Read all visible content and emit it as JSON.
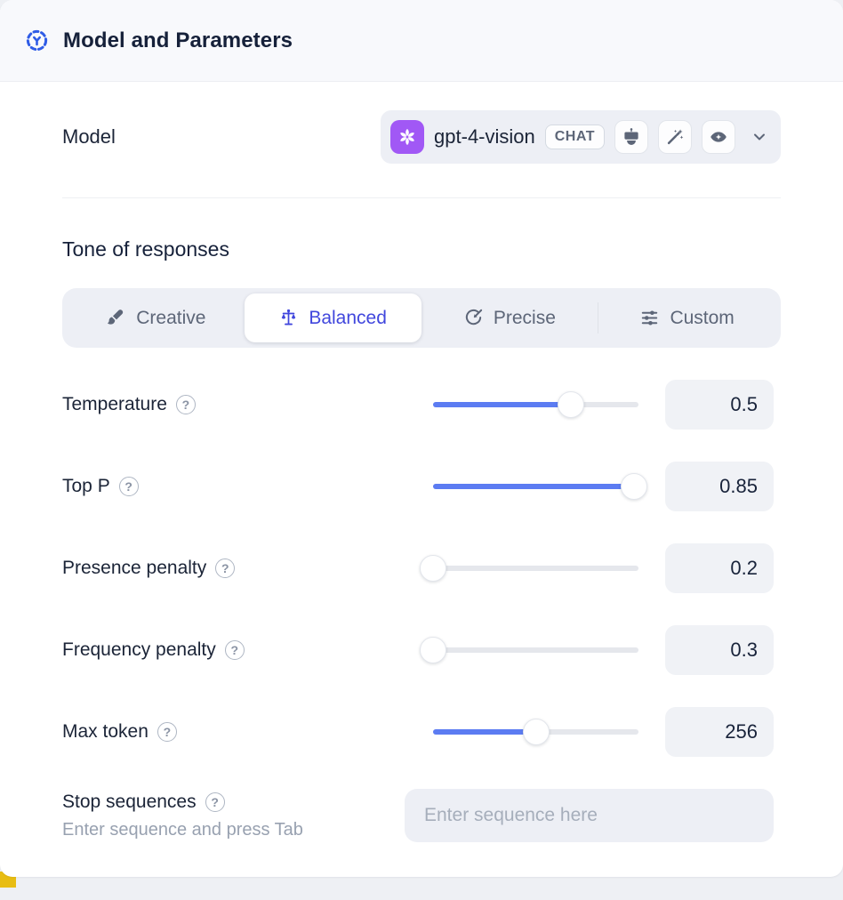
{
  "header": {
    "title": "Model and Parameters"
  },
  "model_row": {
    "label": "Model",
    "selected_model": "gpt-4-vision",
    "badge": "CHAT",
    "capabilities": [
      "robot",
      "magic-wand",
      "vision-eye"
    ]
  },
  "tone": {
    "heading": "Tone of responses",
    "options": [
      {
        "label": "Creative",
        "icon": "paintbrush-icon",
        "selected": false
      },
      {
        "label": "Balanced",
        "icon": "balance-scale-icon",
        "selected": true
      },
      {
        "label": "Precise",
        "icon": "target-icon",
        "selected": false
      },
      {
        "label": "Custom",
        "icon": "sliders-icon",
        "selected": false
      }
    ]
  },
  "sliders": [
    {
      "label": "Temperature",
      "value": "0.5",
      "fill_pct": 67
    },
    {
      "label": "Top P",
      "value": "0.85",
      "fill_pct": 98
    },
    {
      "label": "Presence penalty",
      "value": "0.2",
      "fill_pct": 0
    },
    {
      "label": "Frequency penalty",
      "value": "0.3",
      "fill_pct": 0
    },
    {
      "label": "Max token",
      "value": "256",
      "fill_pct": 50
    }
  ],
  "stop_sequences": {
    "label": "Stop sequences",
    "hint": "Enter sequence and press Tab",
    "placeholder": "Enter sequence here"
  },
  "icons": {
    "help": "?"
  },
  "colors": {
    "accent_blue": "#5c7cf2",
    "selected_indigo": "#4147dd",
    "header_icon_blue": "#2f5ce6",
    "openai_purple": "#a158f5",
    "yellow_accent": "#e8bd13"
  }
}
